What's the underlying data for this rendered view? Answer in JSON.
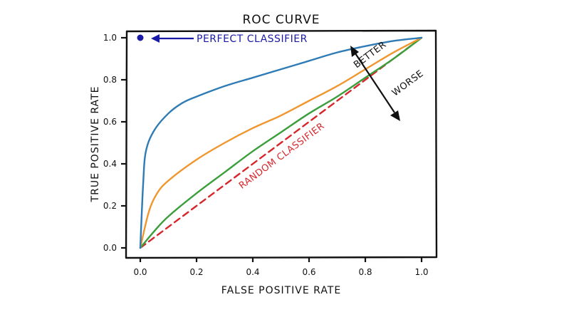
{
  "chart_data": {
    "type": "line",
    "title": "ROC CURVE",
    "xlabel": "FALSE POSITIVE RATE",
    "ylabel": "TRUE POSITIVE RATE",
    "xlim": [
      0,
      1
    ],
    "ylim": [
      0,
      1
    ],
    "x_ticks": [
      "0.0",
      "0.2",
      "0.4",
      "0.6",
      "0.8",
      "1.0"
    ],
    "y_ticks": [
      "0.0",
      "0.2",
      "0.4",
      "0.6",
      "0.8",
      "1.0"
    ],
    "grid": false,
    "series": [
      {
        "color": "#2f7bb5",
        "points": [
          [
            0,
            0
          ],
          [
            0.01,
            0.3
          ],
          [
            0.02,
            0.46
          ],
          [
            0.05,
            0.56
          ],
          [
            0.1,
            0.64
          ],
          [
            0.15,
            0.69
          ],
          [
            0.2,
            0.72
          ],
          [
            0.3,
            0.77
          ],
          [
            0.4,
            0.81
          ],
          [
            0.5,
            0.85
          ],
          [
            0.6,
            0.89
          ],
          [
            0.7,
            0.93
          ],
          [
            0.8,
            0.96
          ],
          [
            0.9,
            0.985
          ],
          [
            1,
            1
          ]
        ]
      },
      {
        "color": "#f0962e",
        "points": [
          [
            0,
            0
          ],
          [
            0.03,
            0.17
          ],
          [
            0.06,
            0.26
          ],
          [
            0.1,
            0.32
          ],
          [
            0.2,
            0.42
          ],
          [
            0.3,
            0.5
          ],
          [
            0.4,
            0.57
          ],
          [
            0.5,
            0.63
          ],
          [
            0.6,
            0.7
          ],
          [
            0.7,
            0.77
          ],
          [
            0.8,
            0.85
          ],
          [
            0.9,
            0.93
          ],
          [
            1,
            1
          ]
        ]
      },
      {
        "color": "#3a9e3a",
        "points": [
          [
            0,
            0
          ],
          [
            0.05,
            0.08
          ],
          [
            0.1,
            0.15
          ],
          [
            0.2,
            0.26
          ],
          [
            0.3,
            0.36
          ],
          [
            0.4,
            0.46
          ],
          [
            0.5,
            0.55
          ],
          [
            0.6,
            0.64
          ],
          [
            0.7,
            0.72
          ],
          [
            0.8,
            0.81
          ],
          [
            0.9,
            0.9
          ],
          [
            1,
            1
          ]
        ]
      },
      {
        "name": "RANDOM CLASSIFIER",
        "color": "#d7262b",
        "dashed": true,
        "points": [
          [
            0,
            0
          ],
          [
            1,
            1
          ]
        ]
      }
    ],
    "perfect_point": {
      "x": 0,
      "y": 1,
      "color": "#1a1aa6"
    },
    "annotations": {
      "perfect": "PERFECT CLASSIFIER",
      "random": "RANDOM CLASSIFIER",
      "better": "BETTER",
      "worse": "WORSE"
    }
  }
}
